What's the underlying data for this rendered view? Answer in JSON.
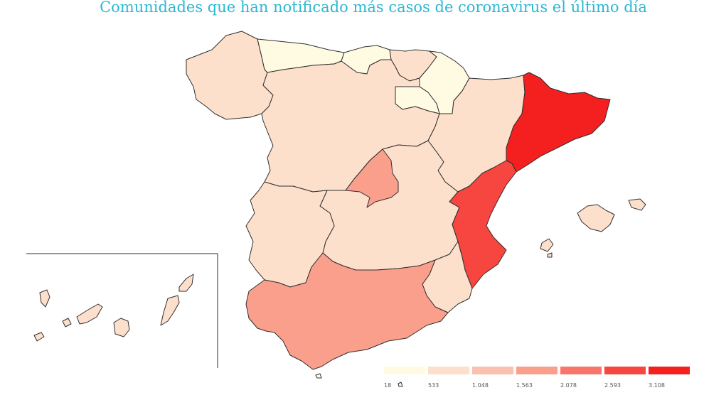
{
  "title": "Comunidades que han notificado más casos de coronavirus el último día",
  "colors": {
    "title": "#2bb8d2",
    "scale": [
      "#fffbe3",
      "#fde0cc",
      "#fcc0ae",
      "#fb9f8d",
      "#f9756b",
      "#f7463f",
      "#f41f1f"
    ],
    "border": "#2f2f2f",
    "madrid_border": "#ffffff"
  },
  "legend": {
    "labels": [
      "18",
      "533",
      "1.048",
      "1.563",
      "2.078",
      "2.593",
      "3.108"
    ]
  },
  "regions": [
    {
      "name": "Galicia",
      "level": 1
    },
    {
      "name": "Asturias",
      "level": 0
    },
    {
      "name": "Cantabria",
      "level": 0
    },
    {
      "name": "País Vasco",
      "level": 1
    },
    {
      "name": "Navarra",
      "level": 0
    },
    {
      "name": "La Rioja",
      "level": 0
    },
    {
      "name": "Castilla y León",
      "level": 1
    },
    {
      "name": "Aragón",
      "level": 1
    },
    {
      "name": "Cataluña",
      "level": 6
    },
    {
      "name": "Comunidad de Madrid",
      "level": 3
    },
    {
      "name": "Castilla-La Mancha",
      "level": 1
    },
    {
      "name": "Extremadura",
      "level": 1
    },
    {
      "name": "Comunitat Valenciana",
      "level": 5
    },
    {
      "name": "Región de Murcia",
      "level": 1
    },
    {
      "name": "Andalucía",
      "level": 3
    },
    {
      "name": "Illes Balears",
      "level": 1
    },
    {
      "name": "Canarias",
      "level": 1
    },
    {
      "name": "Ceuta",
      "level": 0
    },
    {
      "name": "Melilla",
      "level": 0
    }
  ]
}
